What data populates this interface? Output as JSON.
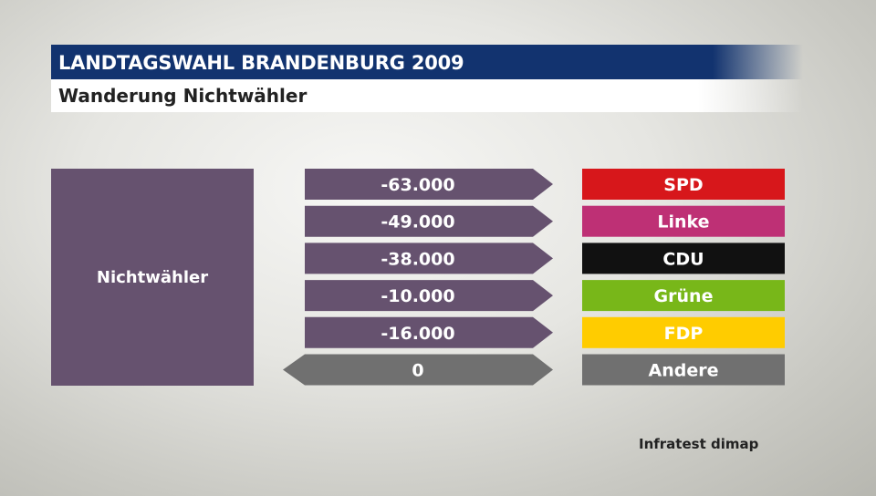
{
  "header": {
    "title": "LANDTAGSWAHL BRANDENBURG 2009",
    "subtitle": "Wanderung Nichtwähler",
    "title_bg": "#12336f"
  },
  "source": {
    "label": "Nichtwähler",
    "color": "#66526f"
  },
  "credit": "Infratest dimap",
  "chart_data": {
    "type": "table",
    "title": "Wanderung Nichtwähler",
    "from": "Nichtwähler",
    "rows": [
      {
        "value_label": "-63.000",
        "value": -63000,
        "party": "SPD",
        "color": "#d7171b",
        "text_color": "#ffffff"
      },
      {
        "value_label": "-49.000",
        "value": -49000,
        "party": "Linke",
        "color": "#be3075",
        "text_color": "#ffffff"
      },
      {
        "value_label": "-38.000",
        "value": -38000,
        "party": "CDU",
        "color": "#111111",
        "text_color": "#ffffff"
      },
      {
        "value_label": "-10.000",
        "value": -10000,
        "party": "Grüne",
        "color": "#78b719",
        "text_color": "#ffffff"
      },
      {
        "value_label": "-16.000",
        "value": -16000,
        "party": "FDP",
        "color": "#ffcc00",
        "text_color": "#ffffff"
      },
      {
        "value_label": "0",
        "value": 0,
        "party": "Andere",
        "color": "#707070",
        "text_color": "#ffffff"
      }
    ],
    "flow_color": "#66526f",
    "neutral_color": "#707070"
  }
}
